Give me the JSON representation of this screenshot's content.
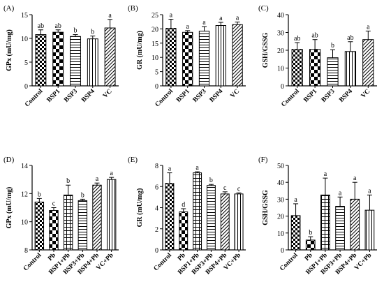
{
  "chart_data": [
    {
      "panel": "(A)",
      "type": "bar",
      "ylabel": "GPx (mU/mg)",
      "ylim": [
        0,
        15
      ],
      "yticks": [
        0,
        5,
        10,
        15
      ],
      "categories": [
        "Control",
        "BSP1",
        "BSP3",
        "BSP4",
        "VC"
      ],
      "values": [
        10.8,
        11.3,
        10.4,
        9.9,
        12.2
      ],
      "errors": [
        1.0,
        0.5,
        0.4,
        0.6,
        1.8
      ],
      "letters": [
        "ab",
        "ab",
        "b",
        "b",
        "a"
      ],
      "patterns": [
        "check",
        "bigcheck",
        "hlines",
        "vlines",
        "diag"
      ]
    },
    {
      "panel": "(B)",
      "type": "bar",
      "ylabel": "GR (mU/mg)",
      "ylim": [
        0,
        25
      ],
      "yticks": [
        0,
        5,
        10,
        15,
        20,
        25
      ],
      "categories": [
        "Control",
        "BSP1",
        "BSP3",
        "BSP4",
        "VC"
      ],
      "values": [
        20.2,
        18.8,
        19.2,
        21.2,
        21.5
      ],
      "errors": [
        3.2,
        0.6,
        1.6,
        1.1,
        0.9
      ],
      "letters": [
        "a",
        "a",
        "a",
        "a",
        "a"
      ],
      "patterns": [
        "check",
        "bigcheck",
        "hlines",
        "vlines",
        "diag"
      ]
    },
    {
      "panel": "(C)",
      "type": "bar",
      "ylabel": "GSH/GSSG",
      "ylim": [
        0,
        40
      ],
      "yticks": [
        0,
        10,
        20,
        30,
        40
      ],
      "categories": [
        "Control",
        "BSP1",
        "BSP3",
        "BSP4",
        "VC"
      ],
      "values": [
        20.5,
        20.5,
        15.8,
        19.3,
        26.0
      ],
      "errors": [
        3.8,
        5.5,
        4.5,
        5.5,
        4.8
      ],
      "letters": [
        "ab",
        "ab",
        "b",
        "ab",
        "a"
      ],
      "patterns": [
        "check",
        "bigcheck",
        "hlines",
        "vlines",
        "diag"
      ]
    },
    {
      "panel": "(D)",
      "type": "bar",
      "ylabel": "GPx (mU/mg)",
      "ylim": [
        8,
        14
      ],
      "yticks": [
        8,
        10,
        12,
        14
      ],
      "categories": [
        "Control",
        "Pb",
        "BSP1+Pb",
        "BSP3+Pb",
        "BSP4+Pb",
        "VC+Pb"
      ],
      "values": [
        11.4,
        10.8,
        11.9,
        11.5,
        12.6,
        13.0
      ],
      "errors": [
        0.25,
        0.2,
        0.7,
        0.1,
        0.15,
        0.15
      ],
      "letters": [
        "b",
        "c",
        "b",
        "b",
        "a",
        "a"
      ],
      "patterns": [
        "check",
        "bigcheck",
        "grid",
        "hlines",
        "diag",
        "vlines"
      ]
    },
    {
      "panel": "(E)",
      "type": "bar",
      "ylabel": "GR (mU/mg)",
      "ylim": [
        0,
        8
      ],
      "yticks": [
        0,
        2,
        4,
        6,
        8
      ],
      "categories": [
        "Control",
        "Pb",
        "BSP1+Pb",
        "BSP3+Pb",
        "BSP4+Pb",
        "VC+Pb"
      ],
      "values": [
        6.3,
        3.6,
        7.3,
        6.1,
        5.3,
        5.3
      ],
      "errors": [
        1.0,
        0.3,
        0.1,
        0.1,
        0.2,
        0.1
      ],
      "letters": [
        "a",
        "d",
        "a",
        "b",
        "c",
        "c"
      ],
      "patterns": [
        "check",
        "bigcheck",
        "grid",
        "hlines",
        "diag",
        "vlines"
      ]
    },
    {
      "panel": "(F)",
      "type": "bar",
      "ylabel": "GSH/GSSG",
      "ylim": [
        0,
        50
      ],
      "yticks": [
        0,
        10,
        20,
        30,
        40,
        50
      ],
      "categories": [
        "Control",
        "Pb",
        "BSP1+Pb",
        "BSP3+Pb",
        "BSP4+Pb",
        "VC+Pb"
      ],
      "values": [
        20.3,
        5.8,
        32.5,
        25.8,
        30.0,
        23.5
      ],
      "errors": [
        7.0,
        2.0,
        10.0,
        5.5,
        10.0,
        9.0
      ],
      "letters": [
        "a",
        "b",
        "a",
        "a",
        "a",
        "a"
      ],
      "patterns": [
        "check",
        "bigcheck",
        "grid",
        "hlines",
        "diag",
        "vlines"
      ]
    }
  ]
}
